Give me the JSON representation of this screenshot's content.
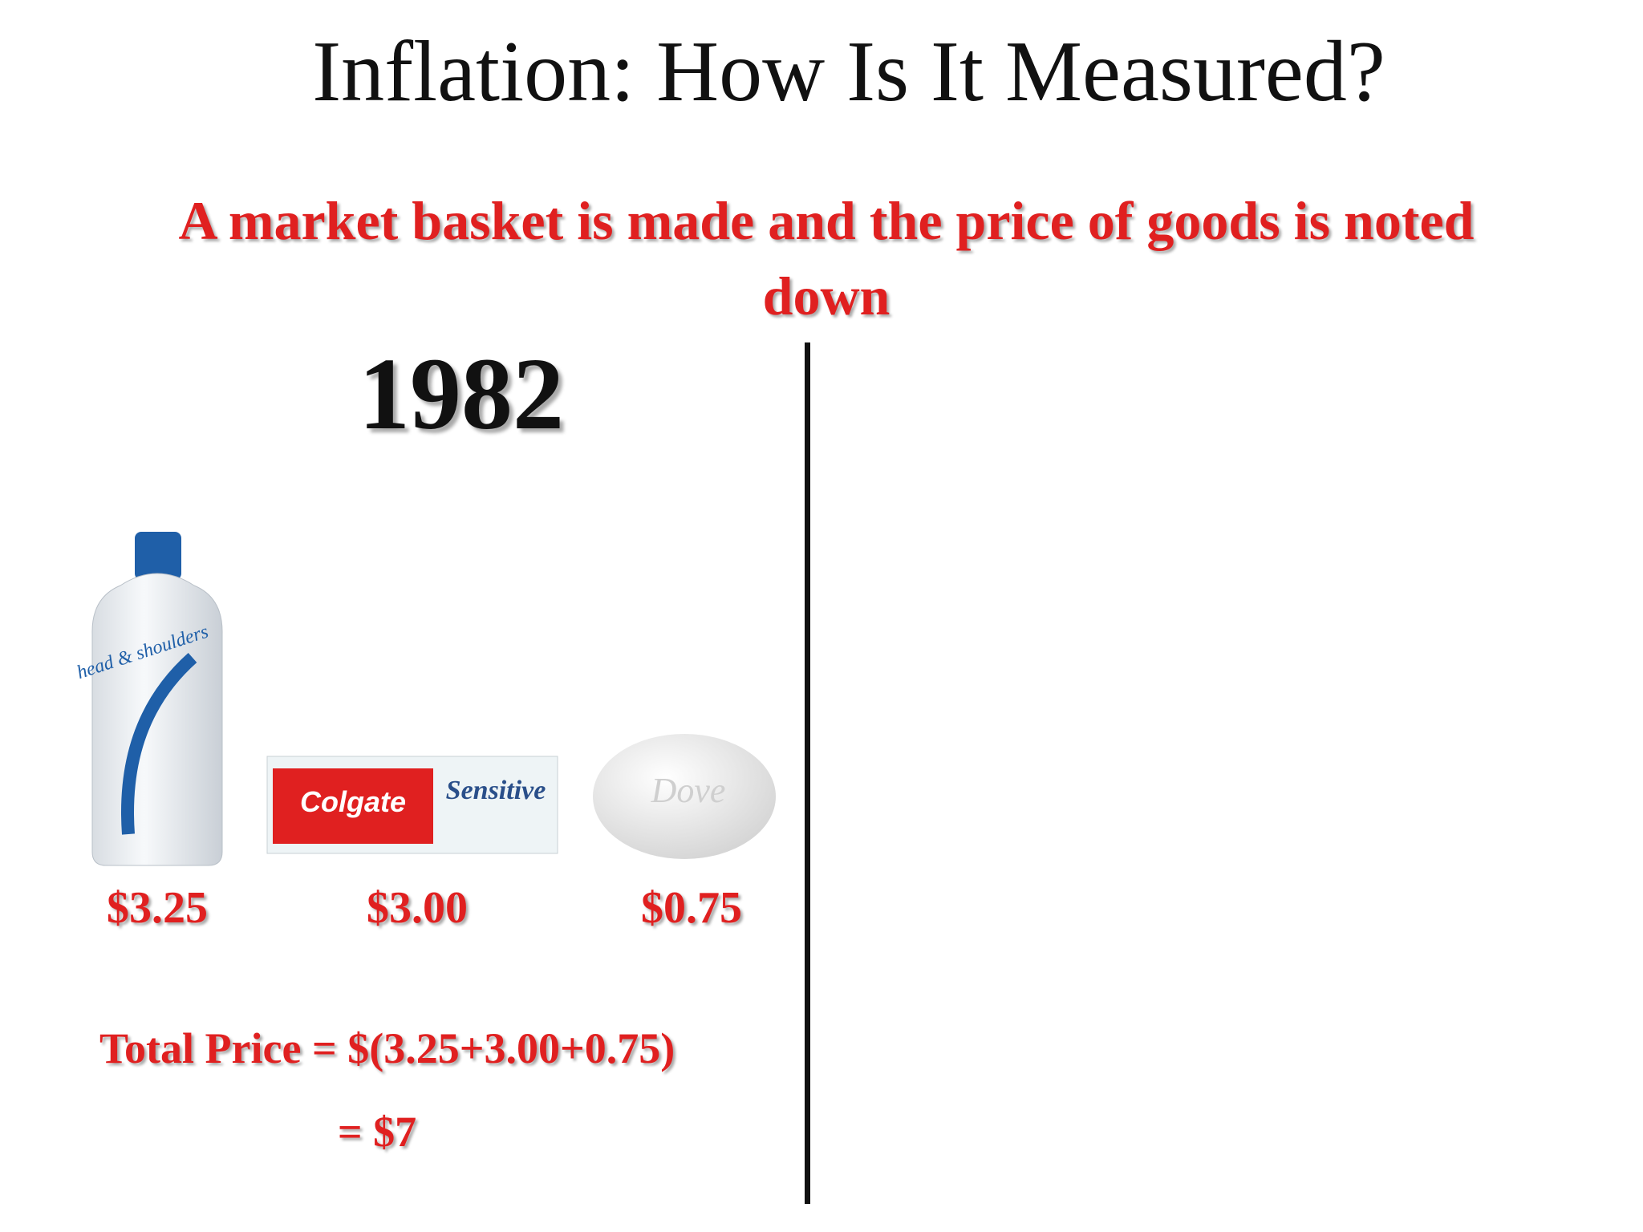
{
  "title": "Inflation: How Is It Measured?",
  "subtitle": "A market basket is made and the price of goods is noted down",
  "year": "1982",
  "items": [
    {
      "brand": "head & shoulders",
      "price": "$3.25"
    },
    {
      "brand": "Colgate",
      "sub_brand": "Sensitive",
      "price": "$3.00"
    },
    {
      "brand": "Dove",
      "price": "$0.75"
    }
  ],
  "total": {
    "formula": "Total Price = $(3.25+3.00+0.75)",
    "result": "= $7"
  }
}
